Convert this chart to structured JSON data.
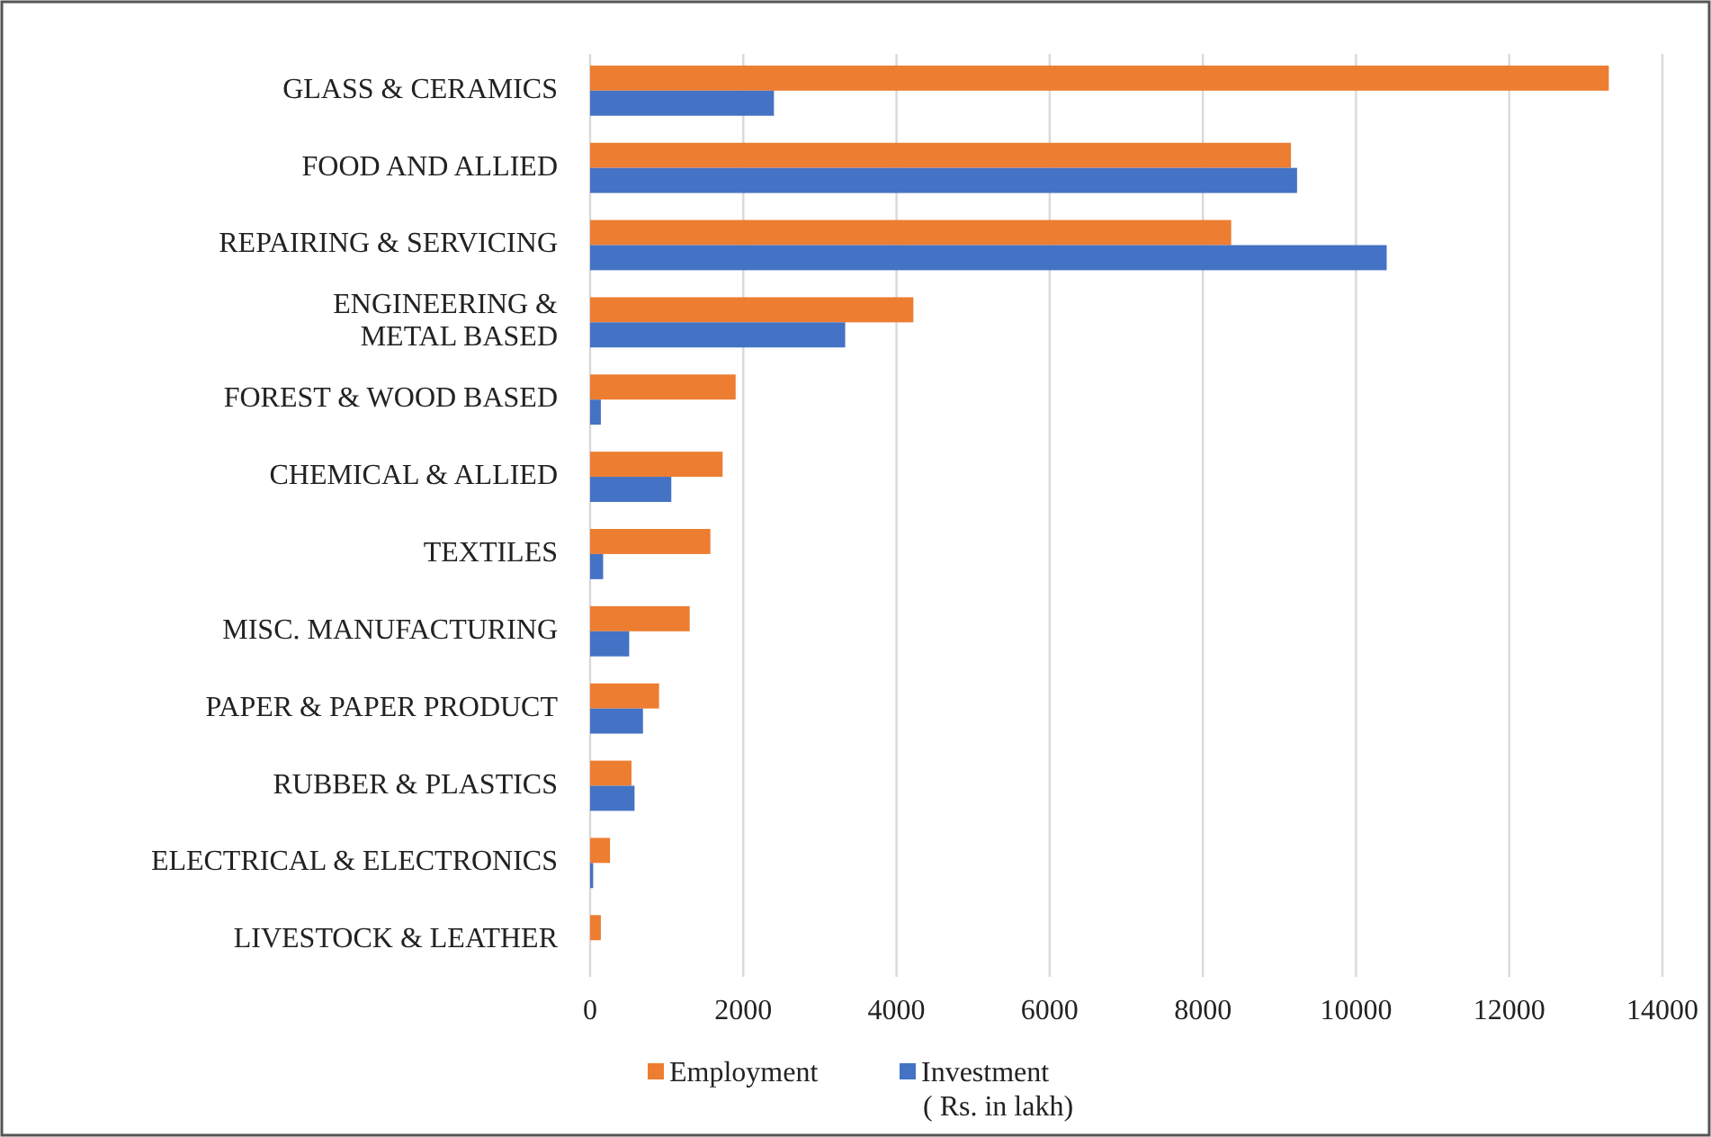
{
  "chart_data": {
    "type": "bar",
    "orientation": "horizontal",
    "categories": [
      "GLASS & CERAMICS",
      "FOOD AND ALLIED",
      "REPAIRING & SERVICING",
      "ENGINEERING &\nMETAL BASED",
      "FOREST & WOOD BASED",
      "CHEMICAL & ALLIED",
      "TEXTILES",
      "MISC. MANUFACTURING",
      "PAPER & PAPER PRODUCT",
      "RUBBER & PLASTICS",
      "ELECTRICAL & ELECTRONICS",
      "LIVESTOCK & LEATHER"
    ],
    "series": [
      {
        "name": "Employment",
        "color": "#ed7d31",
        "values": [
          13300,
          9150,
          8370,
          4220,
          1900,
          1730,
          1570,
          1300,
          900,
          540,
          260,
          140
        ]
      },
      {
        "name": "Investment\n( Rs. in lakh)",
        "color": "#4472c4",
        "values": [
          2400,
          9230,
          10400,
          3330,
          140,
          1060,
          170,
          510,
          690,
          580,
          40,
          null
        ]
      }
    ],
    "xlim": [
      0,
      14000
    ],
    "xticks": [
      0,
      2000,
      4000,
      6000,
      8000,
      10000,
      12000,
      14000
    ],
    "grid": "x",
    "legend": "bottom"
  }
}
